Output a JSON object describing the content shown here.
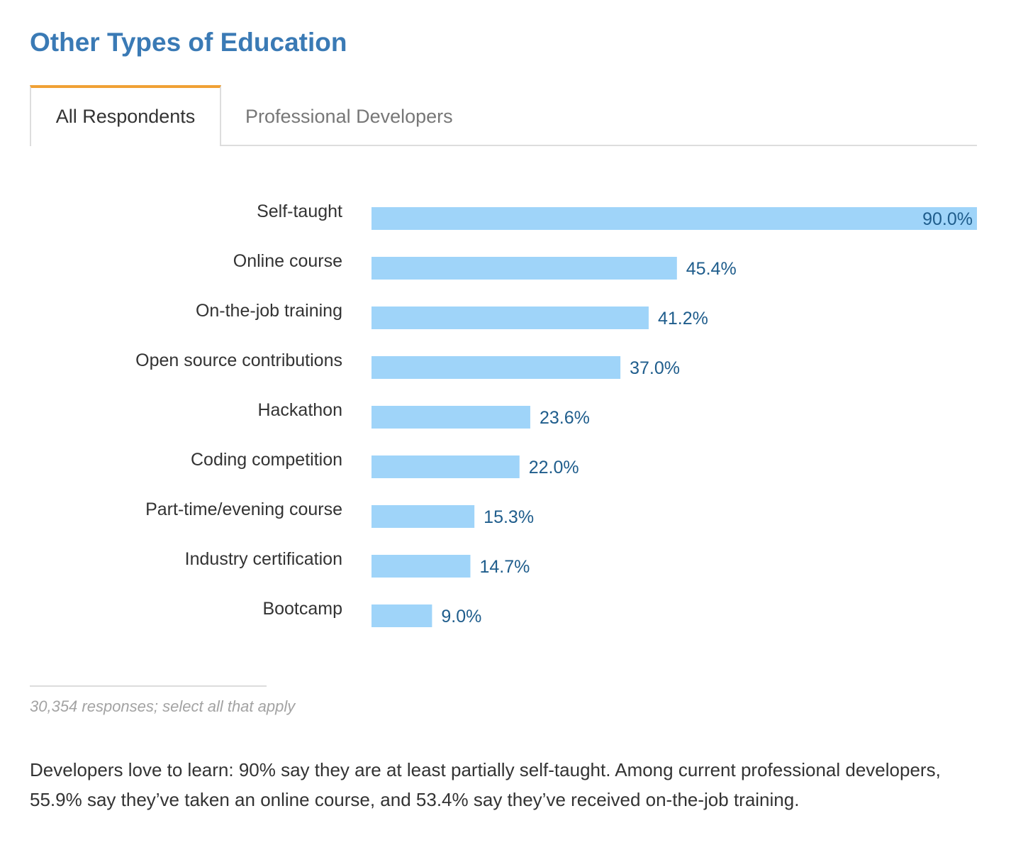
{
  "header": {
    "title": "Other Types of Education"
  },
  "tabs": [
    {
      "label": "All Respondents",
      "active": true
    },
    {
      "label": "Professional Developers",
      "active": false
    }
  ],
  "colors": {
    "title": "#3a7ab5",
    "tab_accent": "#f0a135",
    "bar": "#9fd4f9",
    "value_label": "#1f5d8c"
  },
  "chart_data": {
    "type": "bar",
    "orientation": "horizontal",
    "categories": [
      "Self-taught",
      "Online course",
      "On-the-job training",
      "Open source contributions",
      "Hackathon",
      "Coding competition",
      "Part-time/evening course",
      "Industry certification",
      "Bootcamp"
    ],
    "values": [
      90.0,
      45.4,
      41.2,
      37.0,
      23.6,
      22.0,
      15.3,
      14.7,
      9.0
    ],
    "value_labels": [
      "90.0%",
      "45.4%",
      "41.2%",
      "37.0%",
      "23.6%",
      "22.0%",
      "15.3%",
      "14.7%",
      "9.0%"
    ],
    "unit": "%",
    "xlim": [
      0,
      90
    ],
    "grid": false,
    "legend": "none"
  },
  "footnote": "30,354 responses; select all that apply",
  "summary": "Developers love to learn: 90% say they are at least partially self-taught. Among current professional developers, 55.9% say they’ve taken an online course, and 53.4% say they’ve received on-the-job training."
}
